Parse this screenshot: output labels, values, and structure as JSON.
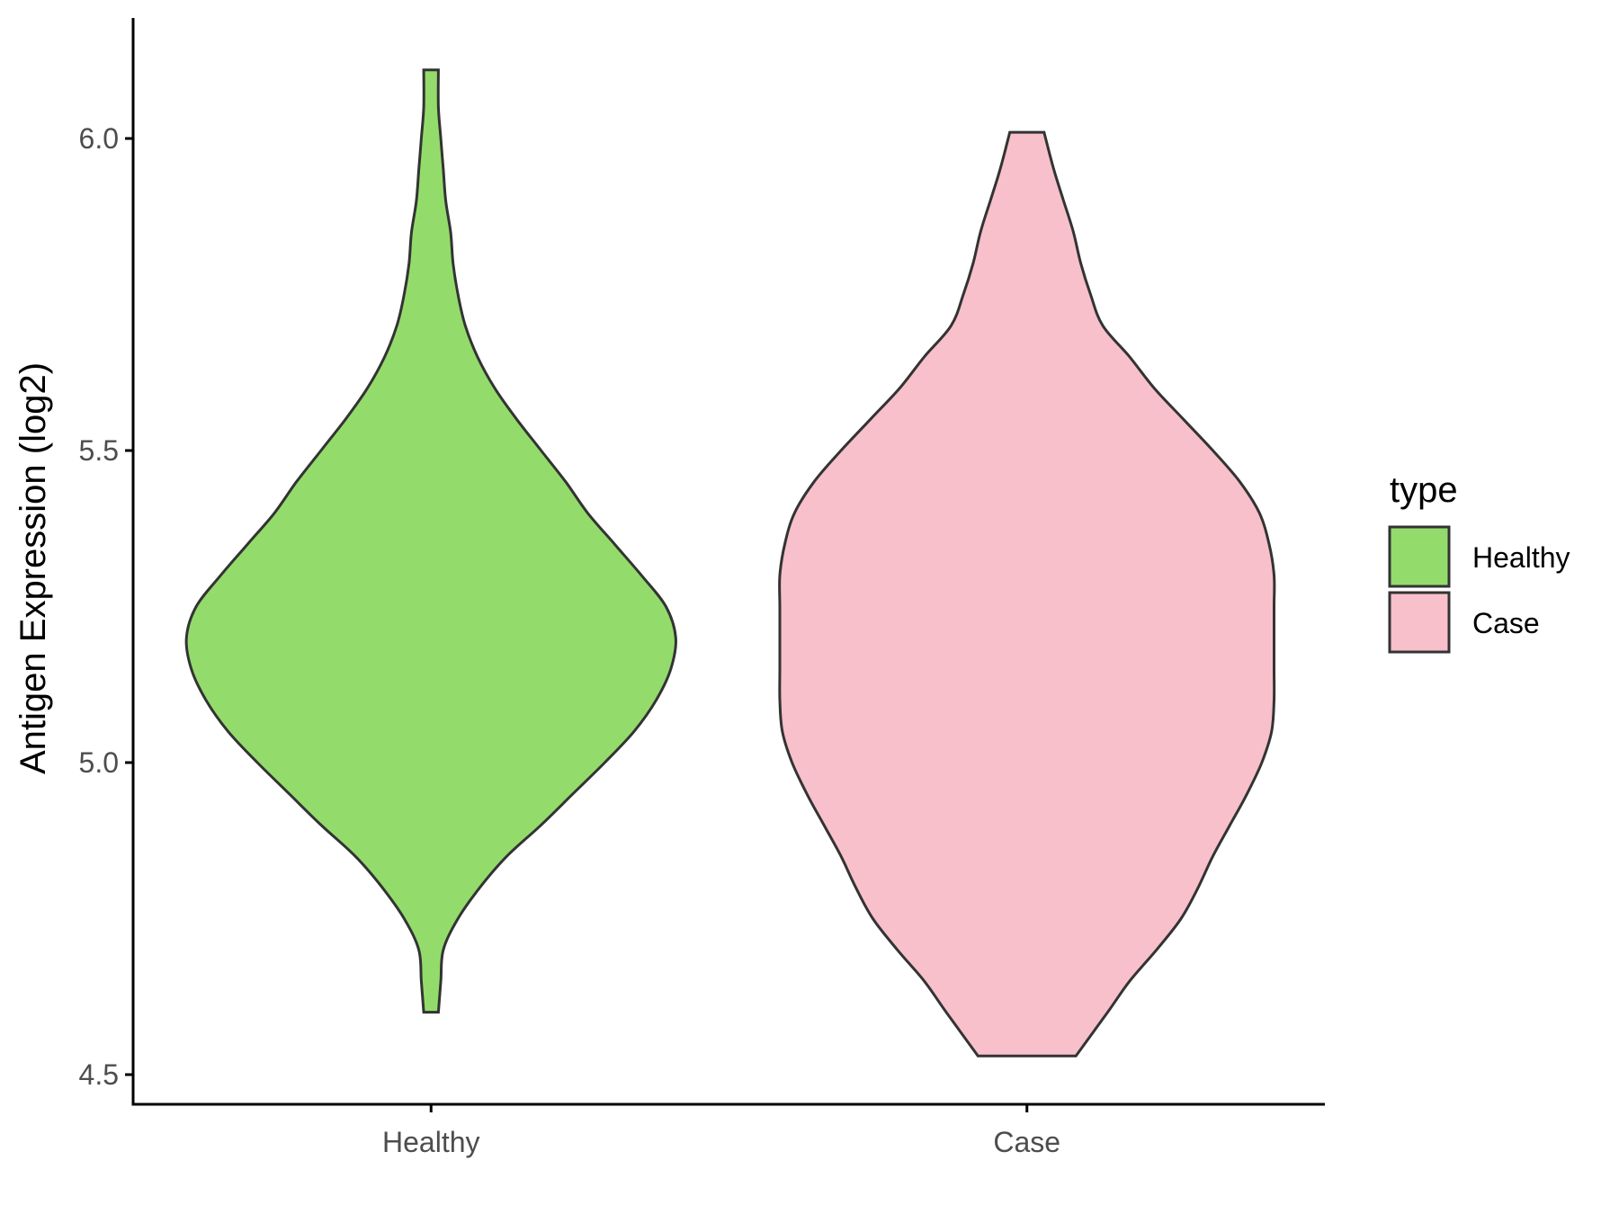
{
  "chart_data": {
    "type": "violin",
    "title": "",
    "xlabel": "",
    "ylabel": "Antigen Expression (log2)",
    "categories": [
      "Healthy",
      "Case"
    ],
    "ylim": [
      4.45,
      6.2
    ],
    "yticks": [
      4.5,
      5.0,
      5.5,
      6.0
    ],
    "ytick_labels": [
      "4.5",
      "5.0",
      "5.5",
      "6.0"
    ],
    "grid": false,
    "legend": {
      "title": "type",
      "position": "right",
      "entries": [
        "Healthy",
        "Case"
      ]
    },
    "series": [
      {
        "name": "Healthy",
        "color": "#93DC6B",
        "min": 4.6,
        "max": 6.11,
        "density": [
          [
            4.6,
            0.03
          ],
          [
            4.65,
            0.04
          ],
          [
            4.7,
            0.05
          ],
          [
            4.75,
            0.11
          ],
          [
            4.8,
            0.2
          ],
          [
            4.85,
            0.31
          ],
          [
            4.9,
            0.45
          ],
          [
            4.95,
            0.58
          ],
          [
            5.0,
            0.71
          ],
          [
            5.05,
            0.83
          ],
          [
            5.1,
            0.92
          ],
          [
            5.15,
            0.98
          ],
          [
            5.2,
            1.0
          ],
          [
            5.25,
            0.96
          ],
          [
            5.3,
            0.86
          ],
          [
            5.35,
            0.75
          ],
          [
            5.4,
            0.64
          ],
          [
            5.45,
            0.55
          ],
          [
            5.5,
            0.45
          ],
          [
            5.55,
            0.35
          ],
          [
            5.6,
            0.26
          ],
          [
            5.65,
            0.19
          ],
          [
            5.7,
            0.14
          ],
          [
            5.75,
            0.11
          ],
          [
            5.8,
            0.09
          ],
          [
            5.85,
            0.08
          ],
          [
            5.9,
            0.06
          ],
          [
            5.95,
            0.05
          ],
          [
            6.0,
            0.04
          ],
          [
            6.05,
            0.03
          ],
          [
            6.11,
            0.03
          ]
        ]
      },
      {
        "name": "Case",
        "color": "#F7C0CB",
        "min": 4.53,
        "max": 6.01,
        "density": [
          [
            4.53,
            0.2
          ],
          [
            4.6,
            0.33
          ],
          [
            4.65,
            0.42
          ],
          [
            4.7,
            0.53
          ],
          [
            4.75,
            0.63
          ],
          [
            4.8,
            0.7
          ],
          [
            4.85,
            0.76
          ],
          [
            4.9,
            0.83
          ],
          [
            4.95,
            0.9
          ],
          [
            5.0,
            0.96
          ],
          [
            5.05,
            1.0
          ],
          [
            5.1,
            1.01
          ],
          [
            5.15,
            1.01
          ],
          [
            5.2,
            1.01
          ],
          [
            5.25,
            1.01
          ],
          [
            5.3,
            1.01
          ],
          [
            5.35,
            0.99
          ],
          [
            5.4,
            0.95
          ],
          [
            5.45,
            0.87
          ],
          [
            5.5,
            0.76
          ],
          [
            5.55,
            0.64
          ],
          [
            5.6,
            0.52
          ],
          [
            5.65,
            0.42
          ],
          [
            5.7,
            0.31
          ],
          [
            5.75,
            0.26
          ],
          [
            5.8,
            0.22
          ],
          [
            5.85,
            0.19
          ],
          [
            5.9,
            0.15
          ],
          [
            5.95,
            0.11
          ],
          [
            6.01,
            0.07
          ]
        ]
      }
    ]
  }
}
